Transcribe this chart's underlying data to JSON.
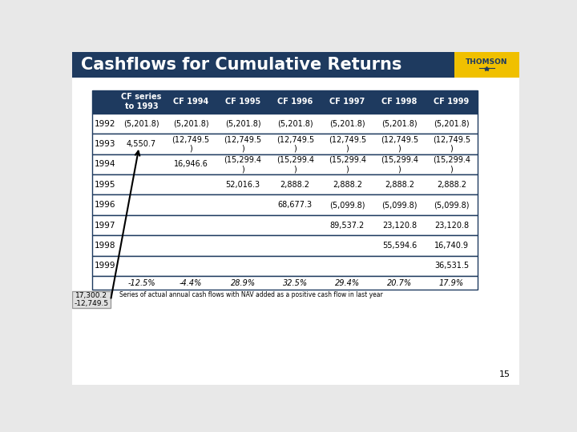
{
  "title": "Cashflows for Cumulative Returns",
  "title_bg": "#1e3a5f",
  "title_color": "#ffffff",
  "title_fontsize": 15,
  "header_bg": "#1e3a5f",
  "header_color": "#ffffff",
  "border_color": "#1e3a5f",
  "col_headers": [
    "CF series\nto 1993",
    "CF 1994",
    "CF 1995",
    "CF 1996",
    "CF 1997",
    "CF 1998",
    "CF 1999"
  ],
  "row_labels": [
    "1992",
    "1993",
    "1994",
    "1995",
    "1996",
    "1997",
    "1998",
    "1999"
  ],
  "table_data": [
    [
      "(5,201.8)",
      "(5,201.8)",
      "(5,201.8)",
      "(5,201.8)",
      "(5,201.8)",
      "(5,201.8)",
      "(5,201.8)"
    ],
    [
      "4,550.7",
      "(12,749.5\n)",
      "(12,749.5\n)",
      "(12,749.5\n)",
      "(12,749.5\n)",
      "(12,749.5\n)",
      "(12,749.5\n)"
    ],
    [
      "",
      "16,946.6",
      "(15,299.4\n)",
      "(15,299.4\n)",
      "(15,299.4\n)",
      "(15,299.4\n)",
      "(15,299.4\n)"
    ],
    [
      "",
      "",
      "52,016.3",
      "2,888.2",
      "2,888.2",
      "2,888.2",
      "2,888.2"
    ],
    [
      "",
      "",
      "",
      "68,677.3",
      "(5,099.8)",
      "(5,099.8)",
      "(5,099.8)"
    ],
    [
      "",
      "",
      "",
      "",
      "89,537.2",
      "23,120.8",
      "23,120.8"
    ],
    [
      "",
      "",
      "",
      "",
      "",
      "55,594.6",
      "16,740.9"
    ],
    [
      "",
      "",
      "",
      "",
      "",
      "",
      "36,531.5"
    ]
  ],
  "bottom_row": [
    "-12.5%",
    "-4.4%",
    "28.9%",
    "32.5%",
    "29.4%",
    "20.7%",
    "17.9%"
  ],
  "bottom_note": "Series of actual annual cash flows with NAV added as a positive cash flow in last year",
  "callout_text": "17,300.2\n-12,749.5",
  "page_number": "15",
  "yellow_bar_color": "#f0c000",
  "bg_color": "#d8d8d8",
  "slide_bg": "#e8e8e8"
}
